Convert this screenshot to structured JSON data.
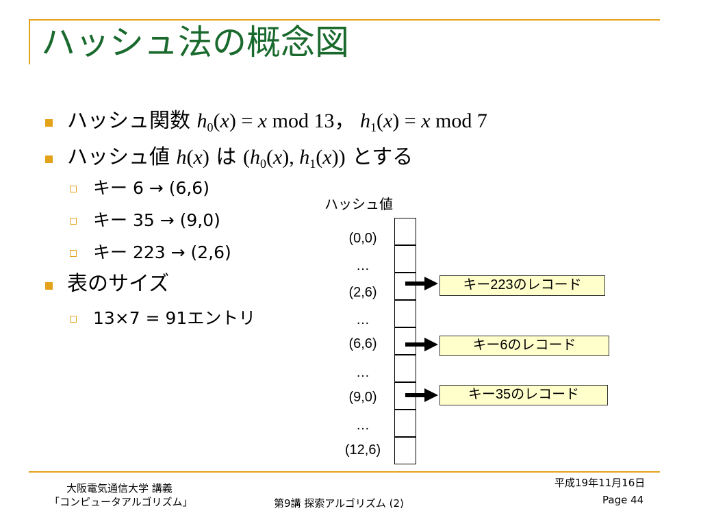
{
  "title": "ハッシュ法の概念図",
  "bullets": {
    "b1": {
      "text": "ハッシュ関数",
      "f0_name": "h",
      "f0_sub": "0",
      "f0_arg": "x",
      "f0_rhs_var": "x",
      "f0_rhs_rest": "mod 13",
      "sep": "，",
      "f1_name": "h",
      "f1_sub": "1",
      "f1_arg": "x",
      "f1_rhs_var": "x",
      "f1_rhs_rest": "mod 7"
    },
    "b2": {
      "text_pre": "ハッシュ値",
      "fn": "h",
      "arg": "x",
      "text_mid": "は",
      "pair_h0": "h",
      "pair_h0_sub": "0",
      "pair_h1": "h",
      "pair_h1_sub": "1",
      "text_post": "とする"
    },
    "examples": [
      "キー 6 → (6,6)",
      "キー 35 → (9,0)",
      "キー 223 → (2,6)"
    ],
    "b3": {
      "text": "表のサイズ"
    },
    "table_size": "13×7 = 91エントリ"
  },
  "hash_table": {
    "header": "ハッシュ値",
    "rows": [
      "(0,0)",
      "…",
      "(2,6)",
      "…",
      "(6,6)",
      "…",
      "(9,0)",
      "…",
      "(12,6)"
    ],
    "records": [
      "キー223のレコード",
      "キー6のレコード",
      "キー35のレコード"
    ]
  },
  "footer": {
    "org_line1": "大阪電気通信大学 講義",
    "org_line2": "「コンピュータアルゴリズム」",
    "lecture": "第9講 探索アルゴリズム (2)",
    "date": "平成19年11月16日",
    "page": "Page 44"
  },
  "colors": {
    "title": "#1a6a2e",
    "accent": "#e3a21a",
    "record_fill": "#ffffcc"
  }
}
